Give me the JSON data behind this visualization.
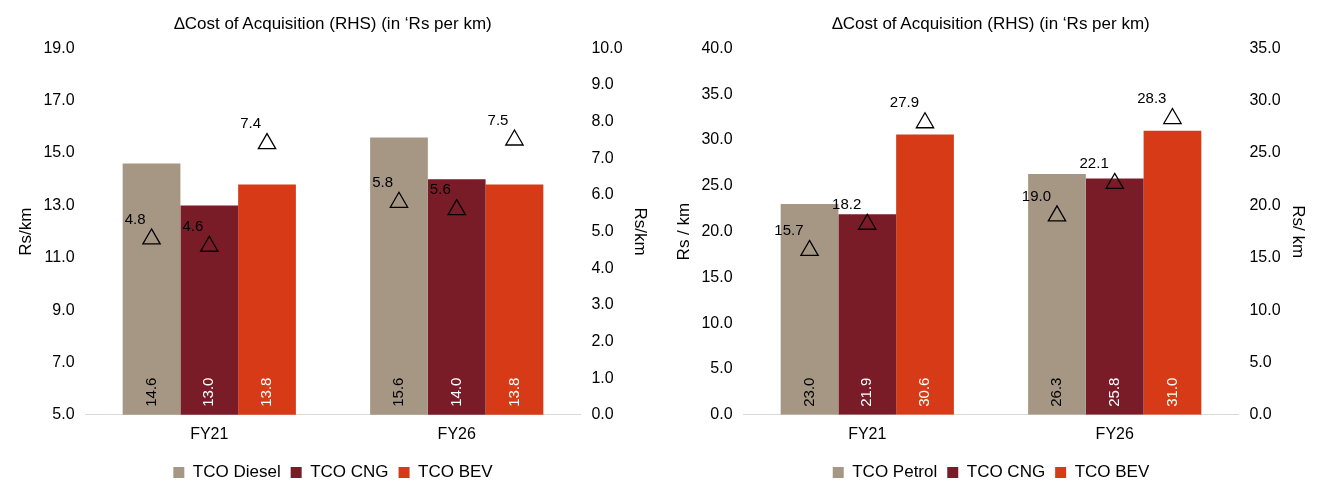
{
  "chart_data": [
    {
      "type": "bar",
      "title": "∆Cost of Acquisition (RHS) (in ‘Rs per km)",
      "ylabel": "Rs/km",
      "y2label": "Rs/km",
      "categories": [
        "FY21",
        "FY26"
      ],
      "series": [
        {
          "name": "TCO Diesel",
          "color": "#a69784",
          "values": [
            14.6,
            15.6
          ],
          "value_labels": [
            "14.6",
            "15.6"
          ]
        },
        {
          "name": "TCO CNG",
          "color": "#7a1c28",
          "values": [
            13.0,
            14.0
          ],
          "value_labels": [
            "13.0",
            "14.0"
          ]
        },
        {
          "name": "TCO BEV",
          "color": "#d63a16",
          "values": [
            13.8,
            13.8
          ],
          "value_labels": [
            "13.8",
            "13.8"
          ]
        },
        {
          "type": "scatter",
          "axis": "y2",
          "marker": "triangle",
          "color": "#000000",
          "x": [
            "FY21",
            "FY26"
          ],
          "values": [
            4.8,
            5.8
          ],
          "value_labels": [
            "4.8",
            "5.8"
          ]
        },
        {
          "type": "scatter",
          "axis": "y2",
          "marker": "triangle",
          "color": "#000000",
          "x": [
            "FY21",
            "FY26"
          ],
          "values": [
            4.6,
            5.6
          ],
          "value_labels": [
            "4.6",
            "5.6"
          ]
        },
        {
          "type": "scatter",
          "axis": "y2",
          "marker": "triangle",
          "color": "#000000",
          "x": [
            "FY21",
            "FY26"
          ],
          "values": [
            7.4,
            7.5
          ],
          "value_labels": [
            "7.4",
            "7.5"
          ]
        }
      ],
      "ylim": [
        5,
        19
      ],
      "yticks": [
        {
          "value": 5,
          "label": "5.0"
        },
        {
          "value": 7,
          "label": "7.0"
        },
        {
          "value": 9,
          "label": "9.0"
        },
        {
          "value": 11,
          "label": "11.0"
        },
        {
          "value": 13,
          "label": "13.0"
        },
        {
          "value": 15,
          "label": "15.0"
        },
        {
          "value": 17,
          "label": "17.0"
        },
        {
          "value": 19,
          "label": "19.0"
        }
      ],
      "y2lim": [
        0,
        10
      ],
      "y2ticks": [
        {
          "value": 0,
          "label": "0.0"
        },
        {
          "value": 1,
          "label": "1.0"
        },
        {
          "value": 2,
          "label": "2.0"
        },
        {
          "value": 3,
          "label": "3.0"
        },
        {
          "value": 4,
          "label": "4.0"
        },
        {
          "value": 5,
          "label": "5.0"
        },
        {
          "value": 6,
          "label": "6.0"
        },
        {
          "value": 7,
          "label": "7.0"
        },
        {
          "value": 8,
          "label": "8.0"
        },
        {
          "value": 9,
          "label": "9.0"
        },
        {
          "value": 10,
          "label": "10.0"
        }
      ],
      "legend": "bottom"
    },
    {
      "type": "bar",
      "title": "∆Cost of Acquisition (RHS) (in ‘Rs per km)",
      "ylabel": "Rs / km",
      "y2label": "Rs/ km",
      "categories": [
        "FY21",
        "FY26"
      ],
      "series": [
        {
          "name": "TCO Petrol",
          "color": "#a69784",
          "values": [
            23.0,
            26.3
          ],
          "value_labels": [
            "23.0",
            "26.3"
          ]
        },
        {
          "name": "TCO CNG",
          "color": "#7a1c28",
          "values": [
            21.9,
            25.8
          ],
          "value_labels": [
            "21.9",
            "25.8"
          ]
        },
        {
          "name": "TCO BEV",
          "color": "#d63a16",
          "values": [
            30.6,
            31.0
          ],
          "value_labels": [
            "30.6",
            "31.0"
          ]
        },
        {
          "type": "scatter",
          "axis": "y2",
          "marker": "triangle",
          "color": "#000000",
          "x": [
            "FY21",
            "FY26"
          ],
          "values": [
            15.7,
            19.0
          ],
          "value_labels": [
            "15.7",
            "19.0"
          ]
        },
        {
          "type": "scatter",
          "axis": "y2",
          "marker": "triangle",
          "color": "#000000",
          "x": [
            "FY21",
            "FY26"
          ],
          "values": [
            18.2,
            22.1
          ],
          "value_labels": [
            "18.2",
            "22.1"
          ]
        },
        {
          "type": "scatter",
          "axis": "y2",
          "marker": "triangle",
          "color": "#000000",
          "x": [
            "FY21",
            "FY26"
          ],
          "values": [
            27.9,
            28.3
          ],
          "value_labels": [
            "27.9",
            "28.3"
          ]
        }
      ],
      "ylim": [
        0,
        40
      ],
      "yticks": [
        {
          "value": 0,
          "label": "0.0"
        },
        {
          "value": 5,
          "label": "5.0"
        },
        {
          "value": 10,
          "label": "10.0"
        },
        {
          "value": 15,
          "label": "15.0"
        },
        {
          "value": 20,
          "label": "20.0"
        },
        {
          "value": 25,
          "label": "25.0"
        },
        {
          "value": 30,
          "label": "30.0"
        },
        {
          "value": 35,
          "label": "35.0"
        },
        {
          "value": 40,
          "label": "40.0"
        }
      ],
      "y2lim": [
        0,
        35
      ],
      "y2ticks": [
        {
          "value": 0,
          "label": "0.0"
        },
        {
          "value": 5,
          "label": "5.0"
        },
        {
          "value": 10,
          "label": "10.0"
        },
        {
          "value": 15,
          "label": "15.0"
        },
        {
          "value": 20,
          "label": "20.0"
        },
        {
          "value": 25,
          "label": "25.0"
        },
        {
          "value": 30,
          "label": "30.0"
        },
        {
          "value": 35,
          "label": "35.0"
        }
      ],
      "legend": "bottom"
    }
  ]
}
